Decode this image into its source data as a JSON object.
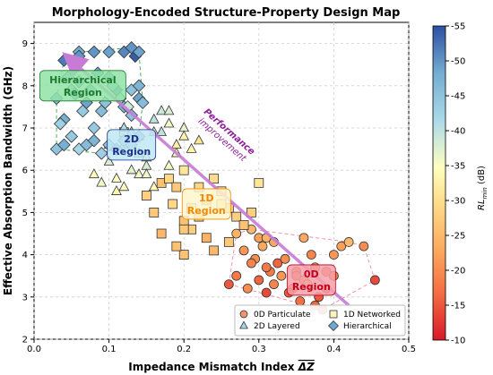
{
  "chart_data": {
    "type": "scatter",
    "title": "Morphology-Encoded Structure-Property Design Map",
    "xlabel": "Impedance Mismatch Index",
    "xlabel_symbol": "ΔZ",
    "ylabel": "Effective Absorption Bandwidth (GHz)",
    "xlim": [
      0.0,
      0.5
    ],
    "ylim": [
      2,
      9.5
    ],
    "xticks": [
      "0.0",
      "0.1",
      "0.2",
      "0.3",
      "0.4",
      "0.5"
    ],
    "yticks": [
      "2",
      "3",
      "4",
      "5",
      "6",
      "7",
      "8",
      "9"
    ],
    "grid": true,
    "colorbar": {
      "label": "RL",
      "label_sub": "min",
      "label_unit": " (dB)",
      "range": [
        -10,
        -55
      ],
      "ticks": [
        "-55",
        "-50",
        "-45",
        "-40",
        "-35",
        "-30",
        "-25",
        "-20",
        "-15",
        "-10"
      ],
      "colormap": "RdYlBu"
    },
    "legend": {
      "placement": "lower-right",
      "entries": [
        "0D Particulate",
        "1D Networked",
        "2D Layered",
        "Hierarchical"
      ]
    },
    "region_labels": [
      {
        "line1": "Hierarchical",
        "line2": "Region",
        "color": "#1e7a2e",
        "fill": "#8fe3a6",
        "x": 0.065,
        "y": 8.0
      },
      {
        "line1": "2D",
        "line2": "Region",
        "color": "#1b2f8a",
        "fill": "#bfe8f5",
        "x": 0.13,
        "y": 6.6
      },
      {
        "line1": "1D",
        "line2": "Region",
        "color": "#f08a00",
        "fill": "#fff6cc",
        "x": 0.23,
        "y": 5.2
      },
      {
        "line1": "0D",
        "line2": "Region",
        "color": "#c0001c",
        "fill": "#f7a0a8",
        "x": 0.37,
        "y": 3.4
      }
    ],
    "arrow": {
      "label_line1": "Performance",
      "label_line2": "improvement",
      "from": [
        0.42,
        2.8
      ],
      "to": [
        0.05,
        8.6
      ],
      "color": "#c77ad6"
    },
    "series": [
      {
        "name": "0D Particulate",
        "marker": "circle",
        "x": [
          0.26,
          0.27,
          0.285,
          0.3,
          0.31,
          0.32,
          0.33,
          0.345,
          0.36,
          0.38,
          0.295,
          0.305,
          0.315,
          0.325,
          0.34,
          0.35,
          0.355,
          0.365,
          0.375,
          0.385,
          0.39,
          0.4,
          0.41,
          0.42,
          0.44,
          0.455,
          0.27,
          0.28,
          0.29,
          0.3,
          0.31,
          0.32,
          0.335,
          0.35,
          0.36,
          0.37,
          0.375,
          0.39,
          0.4,
          0.31,
          0.29
        ],
        "y": [
          3.3,
          3.5,
          3.2,
          3.4,
          3.1,
          3.3,
          3.5,
          3.2,
          3.4,
          3.0,
          3.9,
          4.2,
          3.6,
          3.8,
          3.1,
          3.6,
          2.9,
          3.3,
          3.7,
          2.7,
          3.2,
          3.5,
          4.2,
          4.3,
          4.2,
          3.4,
          4.5,
          4.1,
          3.8,
          4.4,
          3.7,
          4.3,
          3.9,
          3.5,
          4.4,
          4.0,
          2.8,
          3.6,
          4.0,
          4.4,
          4.6
        ],
        "rl": [
          -15,
          -18,
          -20,
          -16,
          -14,
          -19,
          -21,
          -17,
          -22,
          -15,
          -20,
          -23,
          -18,
          -16,
          -15,
          -19,
          -17,
          -24,
          -20,
          -15,
          -16,
          -18,
          -22,
          -25,
          -20,
          -14,
          -24,
          -21,
          -19,
          -22,
          -18,
          -23,
          -20,
          -17,
          -23,
          -19,
          -16,
          -18,
          -21,
          -24,
          -25
        ]
      },
      {
        "name": "1D Networked",
        "marker": "square",
        "x": [
          0.12,
          0.15,
          0.16,
          0.17,
          0.18,
          0.19,
          0.2,
          0.21,
          0.22,
          0.23,
          0.24,
          0.25,
          0.26,
          0.27,
          0.28,
          0.3,
          0.17,
          0.2,
          0.21,
          0.23,
          0.24,
          0.26,
          0.2,
          0.22,
          0.25,
          0.29,
          0.19,
          0.2,
          0.185
        ],
        "y": [
          6.9,
          5.4,
          5.0,
          5.7,
          5.8,
          5.6,
          6.0,
          5.1,
          4.9,
          5.3,
          5.8,
          5.5,
          5.1,
          4.9,
          4.7,
          5.7,
          4.5,
          4.8,
          4.6,
          4.4,
          4.1,
          4.3,
          4.0,
          5.6,
          5.2,
          5.0,
          4.2,
          4.6,
          5.2
        ],
        "rl": [
          -30,
          -28,
          -27,
          -26,
          -29,
          -27,
          -31,
          -28,
          -26,
          -27,
          -30,
          -29,
          -27,
          -28,
          -26,
          -31,
          -25,
          -26,
          -28,
          -24,
          -25,
          -27,
          -26,
          -29,
          -30,
          -28,
          -26,
          -27,
          -29
        ]
      },
      {
        "name": "2D Layered",
        "marker": "triangle",
        "x": [
          0.08,
          0.09,
          0.1,
          0.11,
          0.12,
          0.13,
          0.14,
          0.15,
          0.16,
          0.17,
          0.18,
          0.19,
          0.2,
          0.21,
          0.12,
          0.13,
          0.14,
          0.15,
          0.16,
          0.1,
          0.11,
          0.17,
          0.18,
          0.2,
          0.22,
          0.12,
          0.14,
          0.16,
          0.18,
          0.19,
          0.15
        ],
        "y": [
          5.9,
          5.7,
          6.2,
          5.5,
          6.6,
          6.0,
          6.8,
          6.3,
          6.9,
          7.4,
          7.1,
          6.4,
          7.0,
          6.5,
          5.6,
          6.9,
          5.9,
          6.1,
          5.6,
          6.6,
          5.8,
          6.9,
          6.1,
          6.8,
          6.7,
          7.0,
          6.4,
          7.2,
          7.4,
          6.6,
          5.9
        ],
        "rl": [
          -34,
          -36,
          -38,
          -33,
          -40,
          -37,
          -42,
          -35,
          -38,
          -39,
          -36,
          -34,
          -37,
          -33,
          -35,
          -41,
          -36,
          -38,
          -34,
          -39,
          -35,
          -40,
          -36,
          -33,
          -31,
          -41,
          -37,
          -40,
          -38,
          -32,
          -36
        ]
      },
      {
        "name": "Hierarchical",
        "marker": "diamond",
        "x": [
          0.03,
          0.04,
          0.05,
          0.06,
          0.07,
          0.08,
          0.09,
          0.1,
          0.11,
          0.12,
          0.13,
          0.14,
          0.06,
          0.08,
          0.1,
          0.12,
          0.13,
          0.135,
          0.14,
          0.03,
          0.04,
          0.05,
          0.06,
          0.07,
          0.08,
          0.09,
          0.1,
          0.11,
          0.12,
          0.13,
          0.14,
          0.035,
          0.045,
          0.055,
          0.065,
          0.075,
          0.085,
          0.095,
          0.105,
          0.115,
          0.125,
          0.13,
          0.14,
          0.145,
          0.04,
          0.06
        ],
        "y": [
          6.5,
          6.6,
          6.8,
          6.5,
          6.6,
          6.7,
          6.4,
          6.6,
          6.5,
          6.7,
          6.6,
          6.8,
          8.8,
          8.8,
          8.8,
          8.8,
          8.9,
          8.7,
          8.8,
          7.7,
          7.2,
          7.9,
          8.1,
          7.6,
          7.0,
          7.4,
          8.2,
          7.9,
          7.5,
          7.3,
          7.7,
          7.1,
          8.2,
          7.8,
          7.4,
          7.9,
          8.3,
          7.6,
          8.0,
          7.7,
          7.5,
          7.9,
          8.0,
          7.6,
          8.6,
          8.7
        ],
        "rl": [
          -45,
          -48,
          -44,
          -42,
          -46,
          -47,
          -43,
          -45,
          -49,
          -44,
          -46,
          -47,
          -48,
          -50,
          -49,
          -51,
          -50,
          -54,
          -49,
          -46,
          -48,
          -45,
          -47,
          -49,
          -44,
          -46,
          -48,
          -50,
          -47,
          -45,
          -49,
          -43,
          -46,
          -48,
          -44,
          -47,
          -49,
          -45,
          -43,
          -41,
          -39,
          -45,
          -47,
          -46,
          -52,
          -50
        ]
      }
    ]
  }
}
